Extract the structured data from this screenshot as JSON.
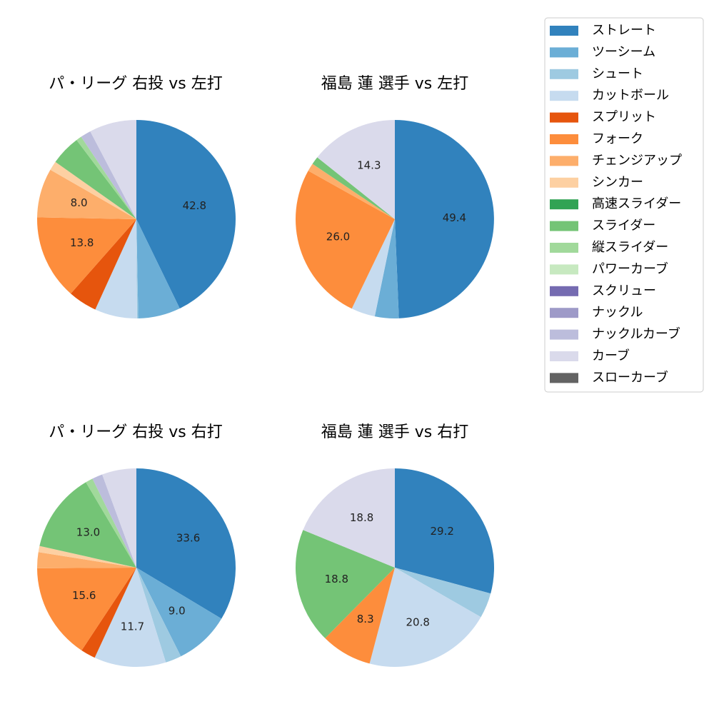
{
  "legend": {
    "items": [
      {
        "name": "ストレート",
        "color": "#3182bd"
      },
      {
        "name": "ツーシーム",
        "color": "#6baed6"
      },
      {
        "name": "シュート",
        "color": "#9ecae1"
      },
      {
        "name": "カットボール",
        "color": "#c6dbef"
      },
      {
        "name": "スプリット",
        "color": "#e6550d"
      },
      {
        "name": "フォーク",
        "color": "#fd8d3c"
      },
      {
        "name": "チェンジアップ",
        "color": "#fdae6b"
      },
      {
        "name": "シンカー",
        "color": "#fdd0a2"
      },
      {
        "name": "高速スライダー",
        "color": "#31a354"
      },
      {
        "name": "スライダー",
        "color": "#74c476"
      },
      {
        "name": "縦スライダー",
        "color": "#a1d99b"
      },
      {
        "name": "パワーカーブ",
        "color": "#c7e9c0"
      },
      {
        "name": "スクリュー",
        "color": "#756bb1"
      },
      {
        "name": "ナックル",
        "color": "#9e9ac8"
      },
      {
        "name": "ナックルカーブ",
        "color": "#bcbddc"
      },
      {
        "name": "カーブ",
        "color": "#dadaeb"
      },
      {
        "name": "スローカーブ",
        "color": "#636363"
      }
    ]
  },
  "chart_data": [
    {
      "type": "pie",
      "title": "パ・リーグ 右投 vs 左打",
      "slices": [
        {
          "category": "ストレート",
          "value": 42.8,
          "label": "42.8"
        },
        {
          "category": "ツーシーム",
          "value": 6.9,
          "label": ""
        },
        {
          "category": "シュート",
          "value": 0.2,
          "label": ""
        },
        {
          "category": "カットボール",
          "value": 6.9,
          "label": ""
        },
        {
          "category": "スプリット",
          "value": 4.7,
          "label": ""
        },
        {
          "category": "フォーク",
          "value": 13.8,
          "label": "13.8"
        },
        {
          "category": "チェンジアップ",
          "value": 8.0,
          "label": "8.0"
        },
        {
          "category": "シンカー",
          "value": 1.5,
          "label": ""
        },
        {
          "category": "スライダー",
          "value": 4.9,
          "label": ""
        },
        {
          "category": "縦スライダー",
          "value": 0.9,
          "label": ""
        },
        {
          "category": "ナックルカーブ",
          "value": 1.7,
          "label": ""
        },
        {
          "category": "カーブ",
          "value": 7.7,
          "label": ""
        }
      ]
    },
    {
      "type": "pie",
      "title": "福島 蓮 選手 vs 左打",
      "slices": [
        {
          "category": "ストレート",
          "value": 49.4,
          "label": "49.4"
        },
        {
          "category": "ツーシーム",
          "value": 3.9,
          "label": ""
        },
        {
          "category": "カットボール",
          "value": 3.9,
          "label": ""
        },
        {
          "category": "フォーク",
          "value": 26.0,
          "label": "26.0"
        },
        {
          "category": "チェンジアップ",
          "value": 1.3,
          "label": ""
        },
        {
          "category": "スライダー",
          "value": 1.3,
          "label": ""
        },
        {
          "category": "カーブ",
          "value": 14.3,
          "label": "14.3"
        }
      ]
    },
    {
      "type": "pie",
      "title": "パ・リーグ 右投 vs 右打",
      "slices": [
        {
          "category": "ストレート",
          "value": 33.6,
          "label": "33.6"
        },
        {
          "category": "ツーシーム",
          "value": 9.0,
          "label": "9.0"
        },
        {
          "category": "シュート",
          "value": 2.6,
          "label": ""
        },
        {
          "category": "カットボール",
          "value": 11.7,
          "label": "11.7"
        },
        {
          "category": "スプリット",
          "value": 2.4,
          "label": ""
        },
        {
          "category": "フォーク",
          "value": 15.6,
          "label": "15.6"
        },
        {
          "category": "チェンジアップ",
          "value": 2.6,
          "label": ""
        },
        {
          "category": "シンカー",
          "value": 1.0,
          "label": ""
        },
        {
          "category": "スライダー",
          "value": 13.0,
          "label": "13.0"
        },
        {
          "category": "縦スライダー",
          "value": 1.2,
          "label": ""
        },
        {
          "category": "ナックルカーブ",
          "value": 1.7,
          "label": ""
        },
        {
          "category": "カーブ",
          "value": 5.6,
          "label": ""
        }
      ]
    },
    {
      "type": "pie",
      "title": "福島 蓮 選手 vs 右打",
      "slices": [
        {
          "category": "ストレート",
          "value": 29.2,
          "label": "29.2"
        },
        {
          "category": "シュート",
          "value": 4.1,
          "label": ""
        },
        {
          "category": "カットボール",
          "value": 20.8,
          "label": "20.8"
        },
        {
          "category": "フォーク",
          "value": 8.3,
          "label": "8.3"
        },
        {
          "category": "スライダー",
          "value": 18.8,
          "label": "18.8"
        },
        {
          "category": "カーブ",
          "value": 18.8,
          "label": "18.8"
        }
      ]
    }
  ]
}
